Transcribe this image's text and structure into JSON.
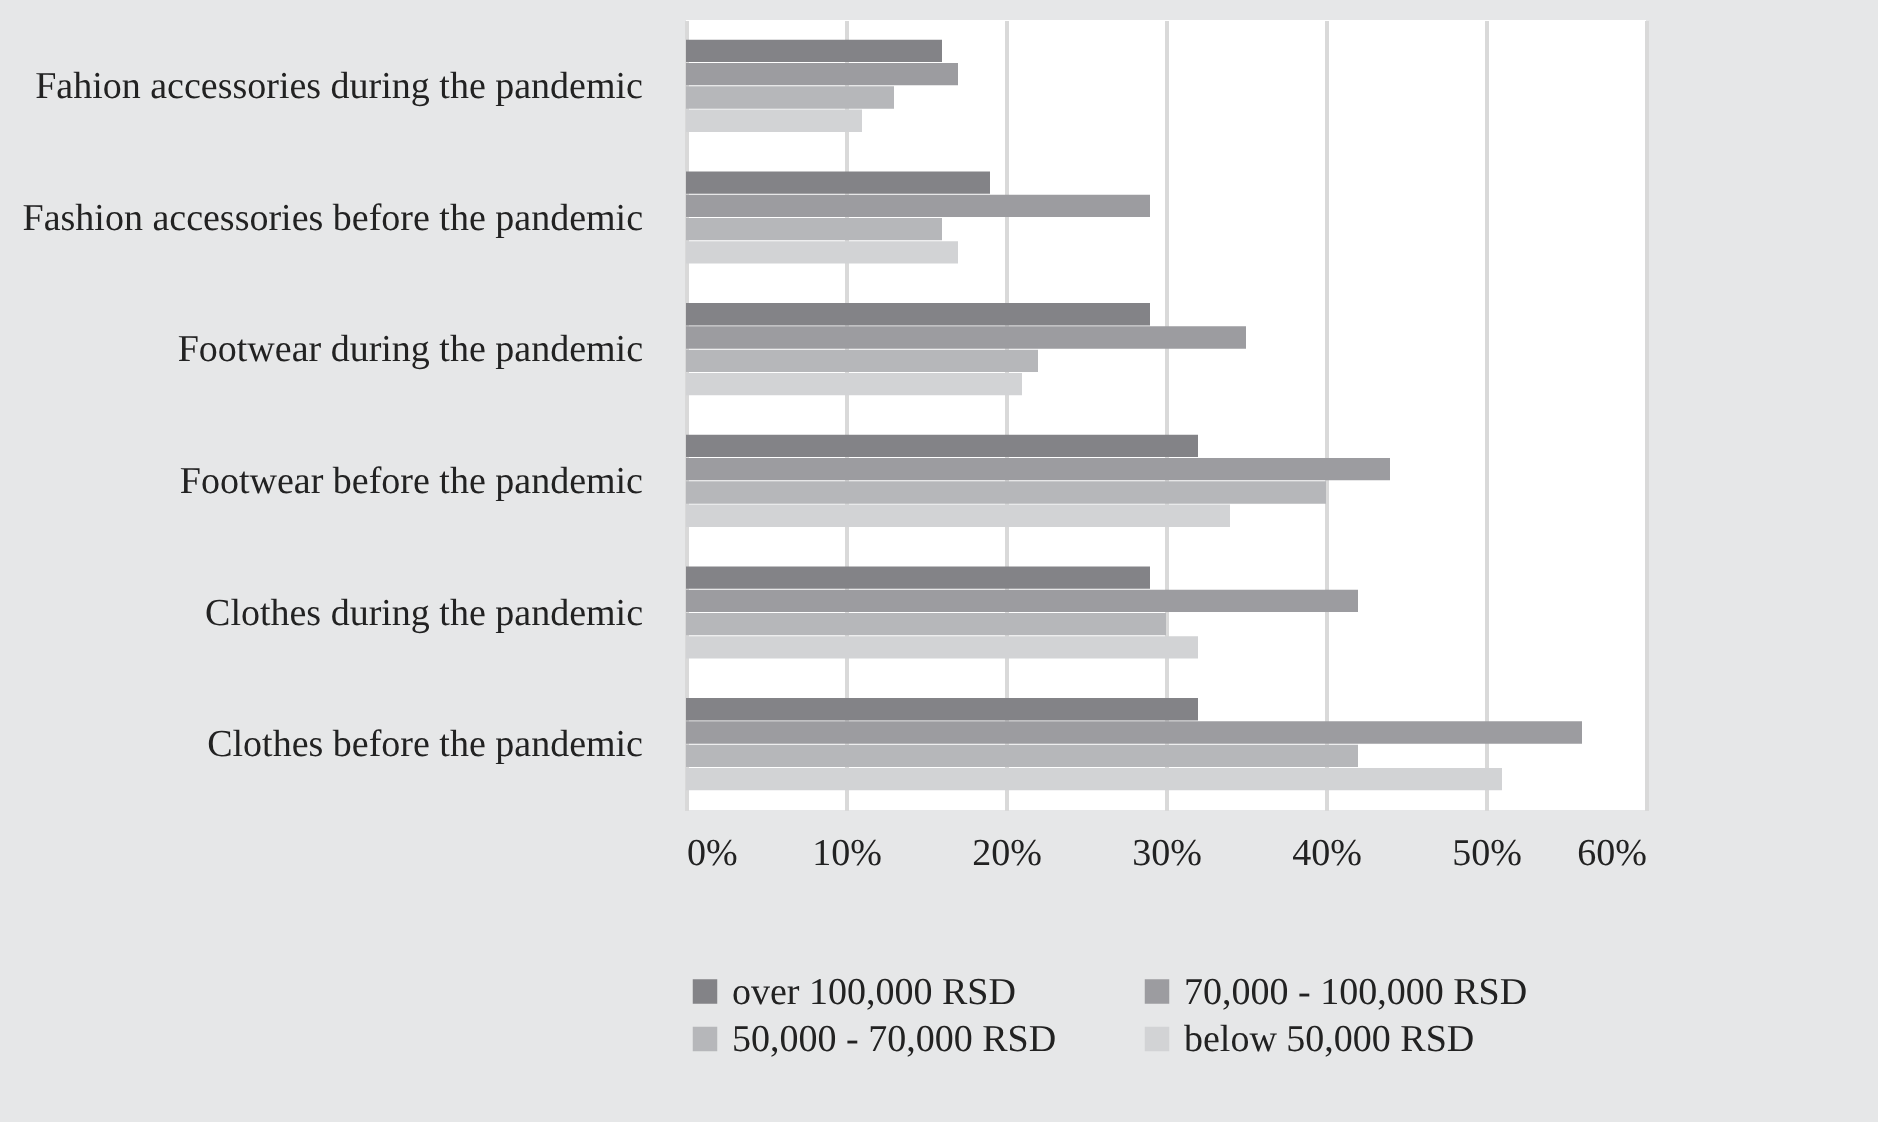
{
  "chart_data": {
    "type": "bar",
    "orientation": "horizontal",
    "categories": [
      "Fahion accessories during the pandemic",
      "Fashion accessories before the pandemic",
      "Footwear during the pandemic",
      "Footwear before the pandemic",
      "Clothes during the pandemic",
      "Clothes before the pandemic"
    ],
    "series": [
      {
        "name": "over 100,000 RSD",
        "color": "#838387",
        "values": [
          16,
          19,
          29,
          32,
          29,
          32
        ]
      },
      {
        "name": "70,000 - 100,000 RSD",
        "color": "#9c9ca0",
        "values": [
          17,
          29,
          35,
          44,
          42,
          56
        ]
      },
      {
        "name": "50,000 - 70,000 RSD",
        "color": "#b6b7ba",
        "values": [
          13,
          16,
          22,
          40,
          30,
          42
        ]
      },
      {
        "name": "below 50,000 RSD",
        "color": "#d2d3d5",
        "values": [
          11,
          17,
          21,
          34,
          32,
          51
        ]
      }
    ],
    "xlim": [
      0,
      60
    ],
    "xticks": [
      {
        "value": 0,
        "label": "0%"
      },
      {
        "value": 10,
        "label": "10%"
      },
      {
        "value": 20,
        "label": "20%"
      },
      {
        "value": 30,
        "label": "30%"
      },
      {
        "value": 40,
        "label": "40%"
      },
      {
        "value": 50,
        "label": "50%"
      },
      {
        "value": 60,
        "label": "60%"
      }
    ],
    "grid": true,
    "legend": "bottom"
  }
}
